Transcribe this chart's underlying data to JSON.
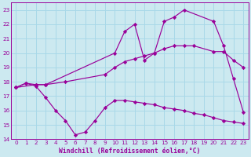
{
  "xlabel": "Windchill (Refroidissement éolien,°C)",
  "xlim": [
    -0.5,
    23.5
  ],
  "ylim": [
    14,
    23.5
  ],
  "yticks": [
    14,
    15,
    16,
    17,
    18,
    19,
    20,
    21,
    22,
    23
  ],
  "xticks": [
    0,
    1,
    2,
    3,
    4,
    5,
    6,
    7,
    8,
    9,
    10,
    11,
    12,
    13,
    14,
    15,
    16,
    17,
    18,
    19,
    20,
    21,
    22,
    23
  ],
  "bg_color": "#cce9f0",
  "grid_color": "#a8d8e8",
  "line_color": "#990099",
  "line1_x": [
    0,
    1,
    2,
    3,
    5,
    9,
    10,
    11,
    12,
    13,
    14,
    15,
    16,
    17,
    18,
    20,
    21,
    22,
    23
  ],
  "line1_y": [
    17.6,
    17.9,
    17.8,
    17.8,
    18.0,
    18.5,
    19.0,
    19.4,
    19.6,
    19.8,
    20.0,
    20.3,
    20.5,
    20.5,
    20.5,
    20.1,
    20.1,
    19.5,
    19.0
  ],
  "line2_x": [
    0,
    1,
    2,
    3,
    4,
    5,
    6,
    7,
    8,
    9,
    10,
    11,
    12,
    13,
    14,
    15,
    16,
    17,
    18,
    19,
    20,
    21,
    22,
    23
  ],
  "line2_y": [
    17.6,
    17.9,
    17.7,
    16.9,
    16.0,
    15.3,
    14.3,
    14.5,
    15.3,
    16.2,
    16.7,
    16.7,
    16.6,
    16.5,
    16.4,
    16.2,
    16.1,
    16.0,
    15.8,
    15.7,
    15.5,
    15.3,
    15.2,
    15.1
  ],
  "line3_x": [
    0,
    2,
    3,
    10,
    11,
    12,
    13,
    14,
    15,
    16,
    17,
    20,
    21,
    22,
    23
  ],
  "line3_y": [
    17.6,
    17.8,
    17.8,
    20.0,
    21.5,
    22.0,
    19.5,
    20.0,
    22.2,
    22.5,
    23.0,
    22.2,
    20.5,
    18.2,
    15.9
  ]
}
